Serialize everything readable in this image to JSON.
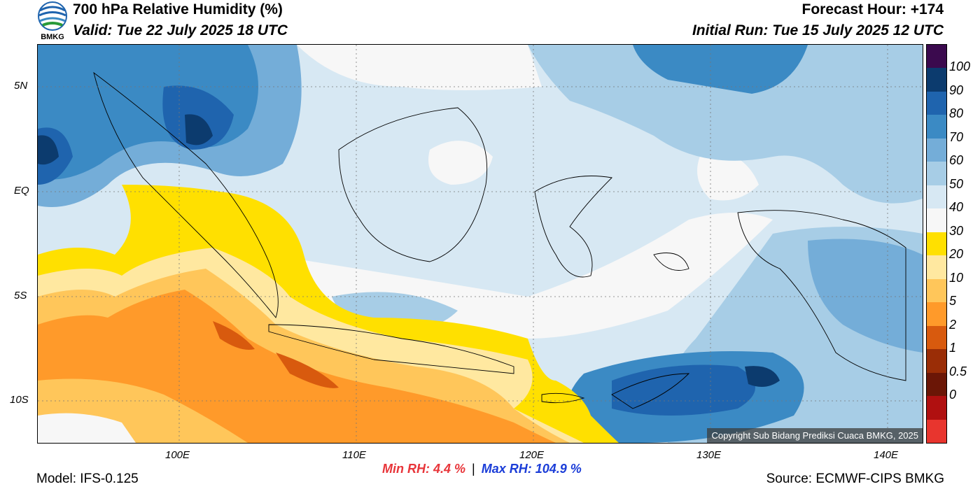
{
  "header": {
    "logo_text": "BMKG",
    "title": "700 hPa Relative Humidity (%)",
    "valid": "Valid: Tue 22 July 2025 18 UTC",
    "forecast_hour": "Forecast Hour: +174",
    "initial_run": "Initial Run: Tue 15 July 2025 12 UTC"
  },
  "map": {
    "lat_labels": [
      "5N",
      "EQ",
      "5S",
      "10S"
    ],
    "lon_labels": [
      "100E",
      "110E",
      "120E",
      "130E",
      "140E"
    ],
    "copyright": "Copyright Sub Bidang Prediksi Cuaca BMKG, 2025"
  },
  "colorbar": {
    "labels": [
      "100",
      "90",
      "80",
      "70",
      "60",
      "50",
      "40",
      "30",
      "20",
      "10",
      "5",
      "2",
      "1",
      "0.5",
      "0"
    ],
    "colors": [
      "#3b0a4e",
      "#0c3b6e",
      "#1f64ae",
      "#3b8ac4",
      "#74add8",
      "#a7cde6",
      "#d7e8f3",
      "#f7f7f7",
      "#ffe000",
      "#ffe8a0",
      "#ffc65a",
      "#ff9a2a",
      "#d85a0e",
      "#9a2d06",
      "#6b1606",
      "#b01010",
      "#e8352e"
    ]
  },
  "stats": {
    "min_label": "Min RH:   4.4 %",
    "separator": "|",
    "max_label": "Max RH: 104.9 %",
    "min_color": "#e8353a",
    "max_color": "#1b3dd8"
  },
  "footer": {
    "model": "Model: IFS-0.125",
    "source": "Source: ECMWF-CIPS BMKG"
  }
}
